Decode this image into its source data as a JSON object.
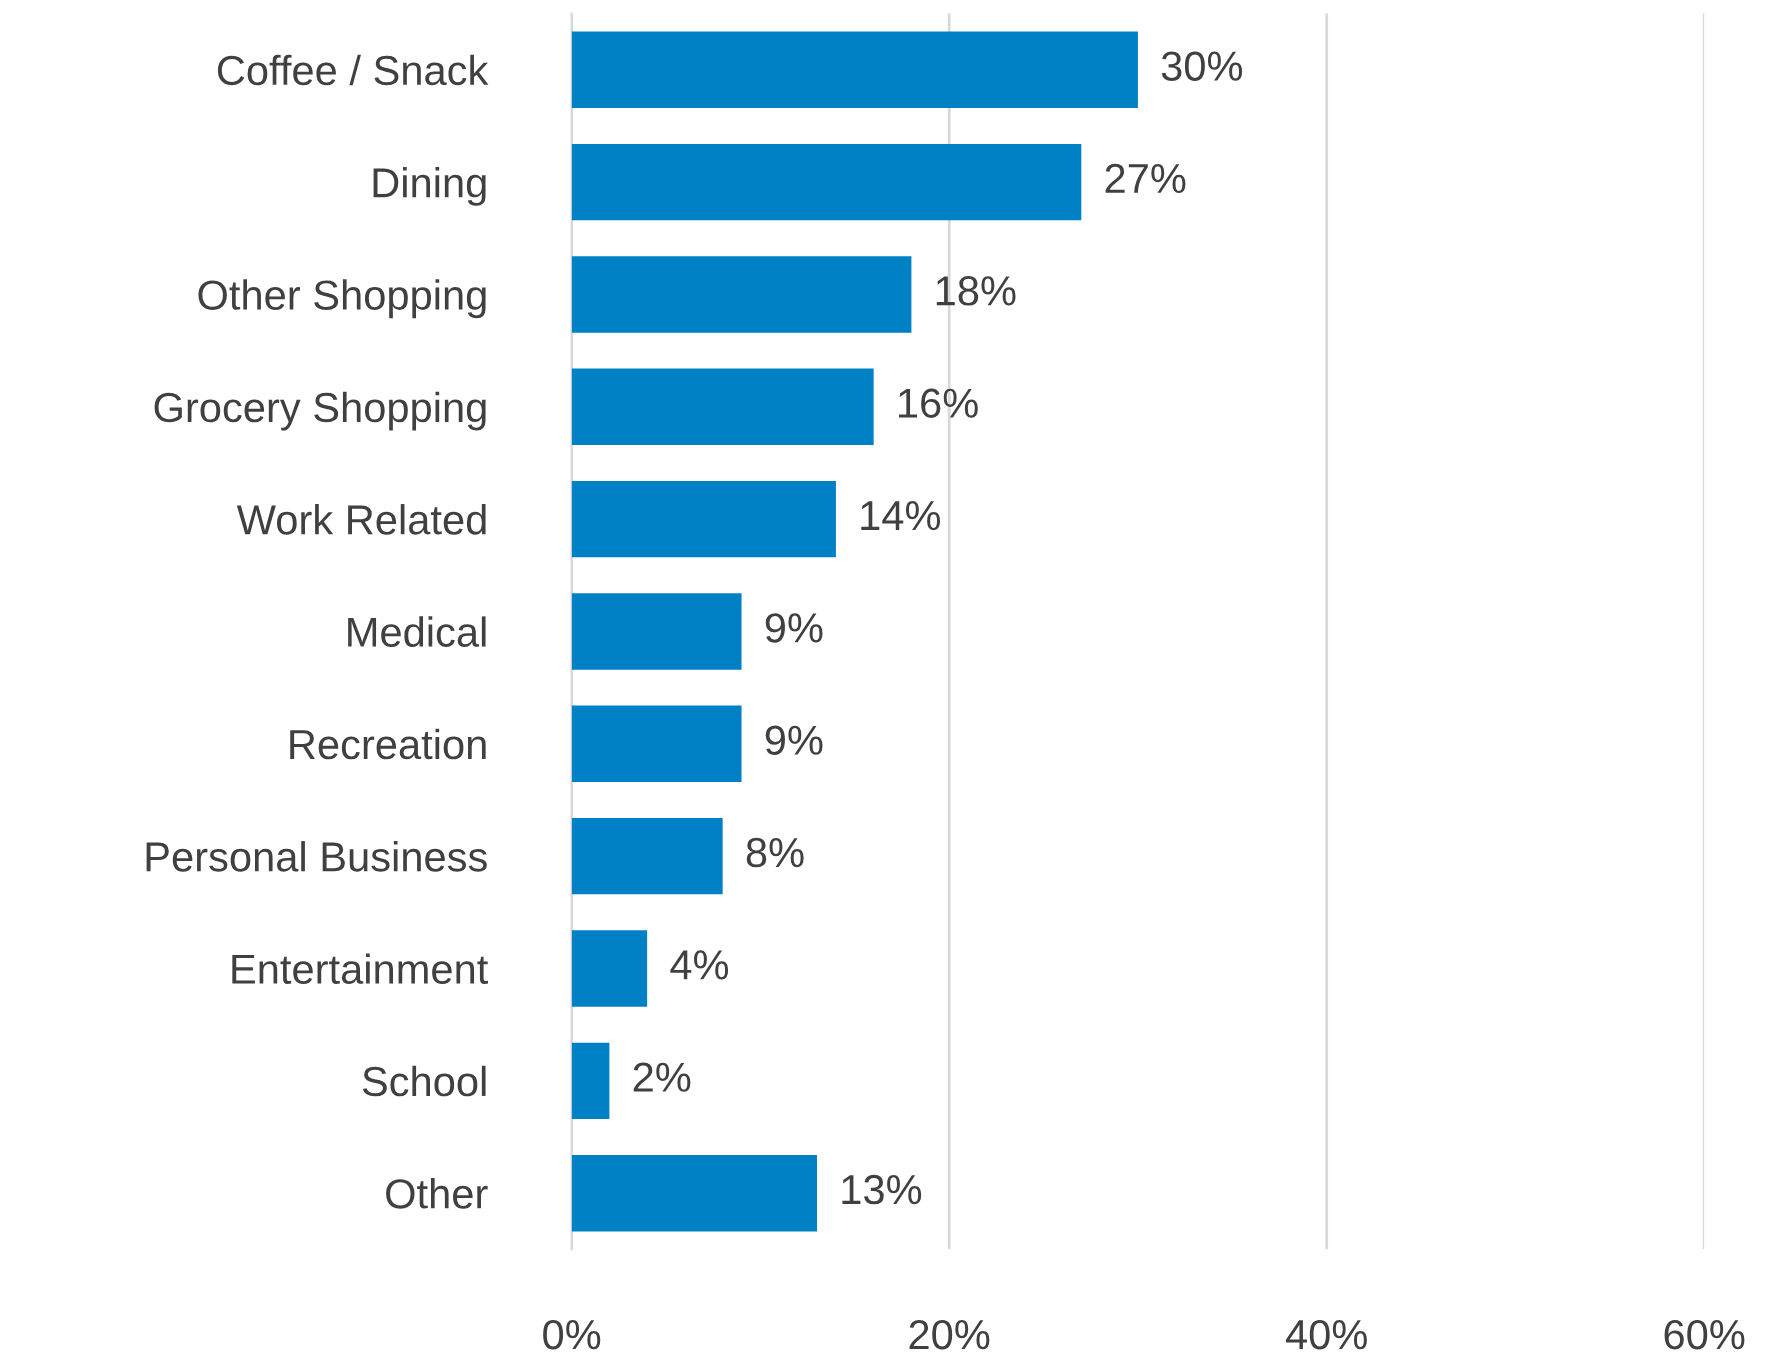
{
  "chart_data": {
    "type": "bar",
    "orientation": "horizontal",
    "categories": [
      "Coffee / Snack",
      "Dining",
      "Other Shopping",
      "Grocery Shopping",
      "Work Related",
      "Medical",
      "Recreation",
      "Personal Business",
      "Entertainment",
      "School",
      "Other"
    ],
    "values": [
      30,
      27,
      18,
      16,
      14,
      9,
      9,
      8,
      4,
      2,
      13
    ],
    "value_labels": [
      "30%",
      "27%",
      "18%",
      "16%",
      "14%",
      "9%",
      "9%",
      "8%",
      "4%",
      "2%",
      "13%"
    ],
    "color": "#0081c6",
    "xlim": [
      0,
      60
    ],
    "xticks": [
      {
        "value": 0,
        "label": "0%"
      },
      {
        "value": 20,
        "label": "20%"
      },
      {
        "value": 40,
        "label": "40%"
      },
      {
        "value": 60,
        "label": "60%"
      }
    ],
    "grid": "x",
    "legend": false
  }
}
